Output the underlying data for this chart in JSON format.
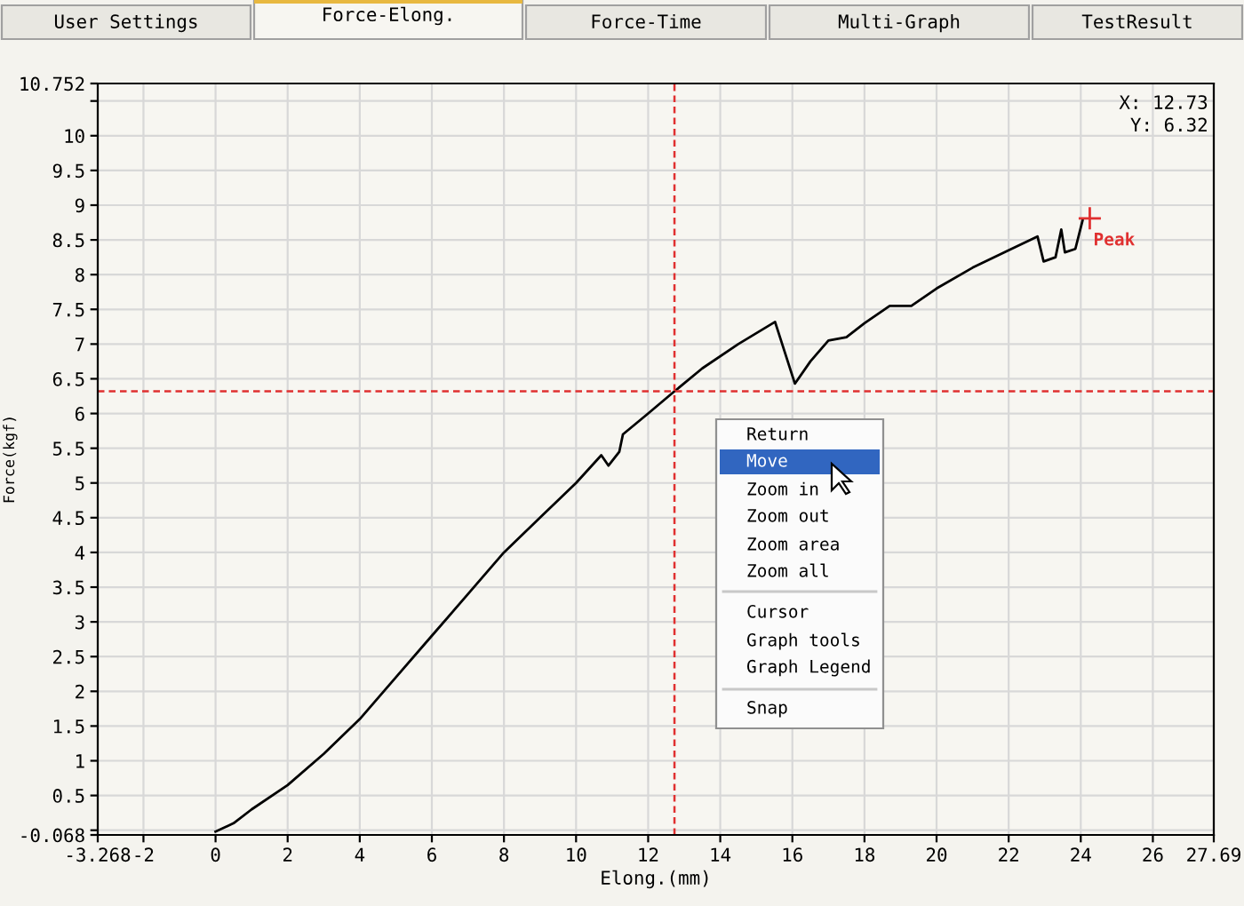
{
  "chart_data": {
    "type": "line",
    "xlabel": "Elong.(mm)",
    "ylabel": "Force(kgf)",
    "series": [
      {
        "color": "#000000",
        "x": [
          0,
          0.5,
          1,
          2,
          3,
          4,
          5,
          6,
          7,
          8,
          9,
          10,
          10.7,
          10.9,
          11.2,
          11.3,
          12,
          12.73,
          13.5,
          14.5,
          15.52,
          16.07,
          16.5,
          17,
          17.5,
          18,
          18.7,
          19.3,
          20,
          21,
          22,
          22.8,
          22.97,
          23.3,
          23.46,
          23.56,
          23.85,
          24.05
        ],
        "values": [
          -0.02,
          0.1,
          0.3,
          0.65,
          1.1,
          1.6,
          2.2,
          2.8,
          3.4,
          4.0,
          4.5,
          5.0,
          5.4,
          5.25,
          5.45,
          5.7,
          6.0,
          6.32,
          6.65,
          7.0,
          7.32,
          6.43,
          6.75,
          7.05,
          7.1,
          7.3,
          7.55,
          7.55,
          7.8,
          8.1,
          8.35,
          8.55,
          8.19,
          8.25,
          8.65,
          8.32,
          8.37,
          8.78
        ]
      }
    ],
    "xlim": [
      -3.268,
      27.69
    ],
    "ylim": [
      -0.068,
      10.752
    ],
    "xticks": [
      -3.268,
      -2,
      0,
      2,
      4,
      6,
      8,
      10,
      12,
      14,
      16,
      18,
      20,
      22,
      24,
      26,
      27.69
    ],
    "yticks": [
      -0.068,
      {
        "value": 0,
        "label": null
      },
      0.5,
      1,
      1.5,
      2,
      2.5,
      3,
      3.5,
      4,
      4.5,
      5,
      5.5,
      6,
      6.5,
      7,
      7.5,
      8,
      8.5,
      9,
      9.5,
      10,
      {
        "value": 10.5,
        "label": null
      },
      10.752
    ],
    "grid": true,
    "line_style": "solid",
    "ref_lines": [
      {
        "axis": "x",
        "value": 12.73,
        "color": "#e03030",
        "line_style": "dashed"
      },
      {
        "axis": "y",
        "value": 6.32,
        "color": "#e03030",
        "line_style": "dashed"
      }
    ],
    "annotations": [
      "User Settings",
      "Force-Elong.",
      "Force-Time",
      "Multi-Graph",
      "TestResult",
      "Return",
      "Move",
      "Zoom in",
      "Zoom out",
      "Zoom area",
      "Zoom all",
      "Cursor",
      "Graph tools",
      "Graph Legend",
      "Snap",
      "X: 12.73",
      "Y: 6.32",
      {
        "text": "Peak",
        "x": 24.25,
        "y": 8.81
      }
    ]
  }
}
